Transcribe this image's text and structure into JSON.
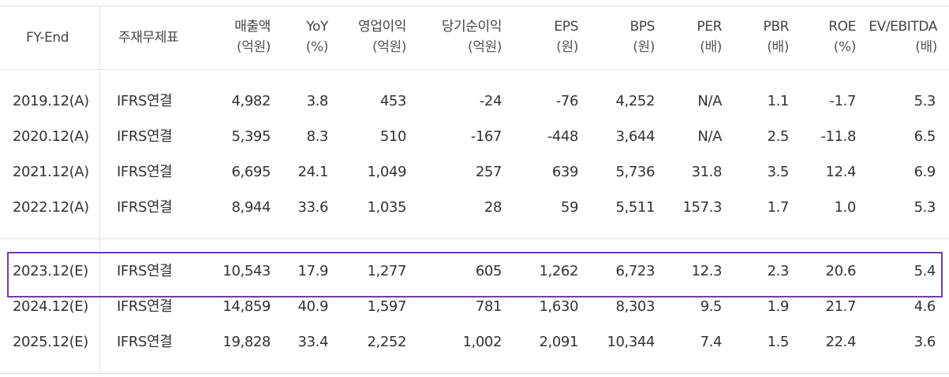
{
  "header": {
    "fy_end": "FY-End",
    "main_statement": "주재무제표",
    "sales": {
      "line1": "매출액",
      "line2": "(억원)"
    },
    "yoy": {
      "line1": "YoY",
      "line2": "(%)"
    },
    "op_income": {
      "line1": "영업이익",
      "line2": "(억원)"
    },
    "net_income": {
      "line1": "당기순이익",
      "line2": "(억원)"
    },
    "eps": {
      "line1": "EPS",
      "line2": "(원)"
    },
    "bps": {
      "line1": "BPS",
      "line2": "(원)"
    },
    "per": {
      "line1": "PER",
      "line2": "(배)"
    },
    "pbr": {
      "line1": "PBR",
      "line2": "(배)"
    },
    "roe": {
      "line1": "ROE",
      "line2": "(%)"
    },
    "ev_ebitda": {
      "line1": "EV/EBITDA",
      "line2": "(배)"
    }
  },
  "rows": [
    {
      "fy": "2019.12(A)",
      "stmt": "IFRS연결",
      "sales": "4,982",
      "yoy": "3.8",
      "op": "453",
      "net": "-24",
      "eps": "-76",
      "bps": "4,252",
      "per": "N/A",
      "pbr": "1.1",
      "roe": "-1.7",
      "ev": "5.3"
    },
    {
      "fy": "2020.12(A)",
      "stmt": "IFRS연결",
      "sales": "5,395",
      "yoy": "8.3",
      "op": "510",
      "net": "-167",
      "eps": "-448",
      "bps": "3,644",
      "per": "N/A",
      "pbr": "2.5",
      "roe": "-11.8",
      "ev": "6.5"
    },
    {
      "fy": "2021.12(A)",
      "stmt": "IFRS연결",
      "sales": "6,695",
      "yoy": "24.1",
      "op": "1,049",
      "net": "257",
      "eps": "639",
      "bps": "5,736",
      "per": "31.8",
      "pbr": "3.5",
      "roe": "12.4",
      "ev": "6.9"
    },
    {
      "fy": "2022.12(A)",
      "stmt": "IFRS연결",
      "sales": "8,944",
      "yoy": "33.6",
      "op": "1,035",
      "net": "28",
      "eps": "59",
      "bps": "5,511",
      "per": "157.3",
      "pbr": "1.7",
      "roe": "1.0",
      "ev": "5.3"
    },
    {
      "fy": "2023.12(E)",
      "stmt": "IFRS연결",
      "sales": "10,543",
      "yoy": "17.9",
      "op": "1,277",
      "net": "605",
      "eps": "1,262",
      "bps": "6,723",
      "per": "12.3",
      "pbr": "2.3",
      "roe": "20.6",
      "ev": "5.4"
    },
    {
      "fy": "2024.12(E)",
      "stmt": "IFRS연결",
      "sales": "14,859",
      "yoy": "40.9",
      "op": "1,597",
      "net": "781",
      "eps": "1,630",
      "bps": "8,303",
      "per": "9.5",
      "pbr": "1.9",
      "roe": "21.7",
      "ev": "4.6"
    },
    {
      "fy": "2025.12(E)",
      "stmt": "IFRS연결",
      "sales": "19,828",
      "yoy": "33.4",
      "op": "2,252",
      "net": "1,002",
      "eps": "2,091",
      "bps": "10,344",
      "per": "7.4",
      "pbr": "1.5",
      "roe": "22.4",
      "ev": "3.6"
    }
  ],
  "highlight_color": "#6e3fa3"
}
